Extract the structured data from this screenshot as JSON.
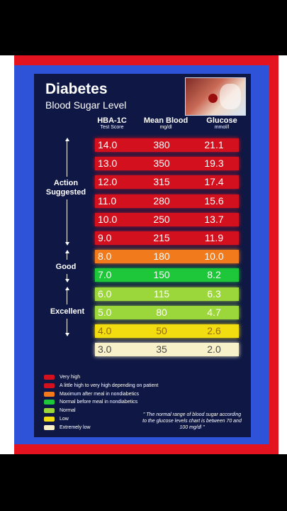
{
  "card": {
    "title": "Diabetes",
    "subtitle": "Blood Sugar Level"
  },
  "columns": [
    {
      "label": "HBA-1C",
      "unit": "Test Score"
    },
    {
      "label": "Mean Blood",
      "unit": "mg/dl"
    },
    {
      "label": "Glucose",
      "unit": "mmol/l"
    }
  ],
  "rows": [
    {
      "hba1c": "14.0",
      "mean_blood": "380",
      "glucose": "21.1",
      "color": "#d2101e",
      "text_color": "#ffffff"
    },
    {
      "hba1c": "13.0",
      "mean_blood": "350",
      "glucose": "19.3",
      "color": "#d2101e",
      "text_color": "#ffffff"
    },
    {
      "hba1c": "12.0",
      "mean_blood": "315",
      "glucose": "17.4",
      "color": "#d2101e",
      "text_color": "#ffffff"
    },
    {
      "hba1c": "11.0",
      "mean_blood": "280",
      "glucose": "15.6",
      "color": "#d2101e",
      "text_color": "#ffffff"
    },
    {
      "hba1c": "10.0",
      "mean_blood": "250",
      "glucose": "13.7",
      "color": "#d2101e",
      "text_color": "#ffffff"
    },
    {
      "hba1c": "9.0",
      "mean_blood": "215",
      "glucose": "11.9",
      "color": "#d2101e",
      "text_color": "#ffffff"
    },
    {
      "hba1c": "8.0",
      "mean_blood": "180",
      "glucose": "10.0",
      "color": "#f07a1c",
      "text_color": "#ffffff"
    },
    {
      "hba1c": "7.0",
      "mean_blood": "150",
      "glucose": "8.2",
      "color": "#1ec63a",
      "text_color": "#ffffff"
    },
    {
      "hba1c": "6.0",
      "mean_blood": "115",
      "glucose": "6.3",
      "color": "#9bd63a",
      "text_color": "#ffffff"
    },
    {
      "hba1c": "5.0",
      "mean_blood": "80",
      "glucose": "4.7",
      "color": "#9bd63a",
      "text_color": "#ffffff"
    },
    {
      "hba1c": "4.0",
      "mean_blood": "50",
      "glucose": "2.6",
      "color": "#f2de10",
      "text_color": "#9a6a10"
    },
    {
      "hba1c": "3.0",
      "mean_blood": "35",
      "glucose": "2.0",
      "color": "#f7f0c8",
      "text_color": "#4a4a4a"
    }
  ],
  "side_labels": {
    "action": "Action\nSuggested",
    "good": "Good",
    "excellent": "Excellent"
  },
  "legend": [
    {
      "label": "Very high",
      "color": "#d2101e"
    },
    {
      "label": "A little high to very high depending on patient",
      "color": "#d2101e"
    },
    {
      "label": "Maximum after meal in nondiabetics",
      "color": "#f07a1c"
    },
    {
      "label": "Normal before meal in nondiabetics",
      "color": "#1ec63a"
    },
    {
      "label": "Normal",
      "color": "#9bd63a"
    },
    {
      "label": "Low",
      "color": "#f2de10"
    },
    {
      "label": "Extremely low",
      "color": "#f7f0c8"
    }
  ],
  "note": "\" The normal range of blood sugar according to the glucose levels chart is between 70 and 100 mg/dl \""
}
